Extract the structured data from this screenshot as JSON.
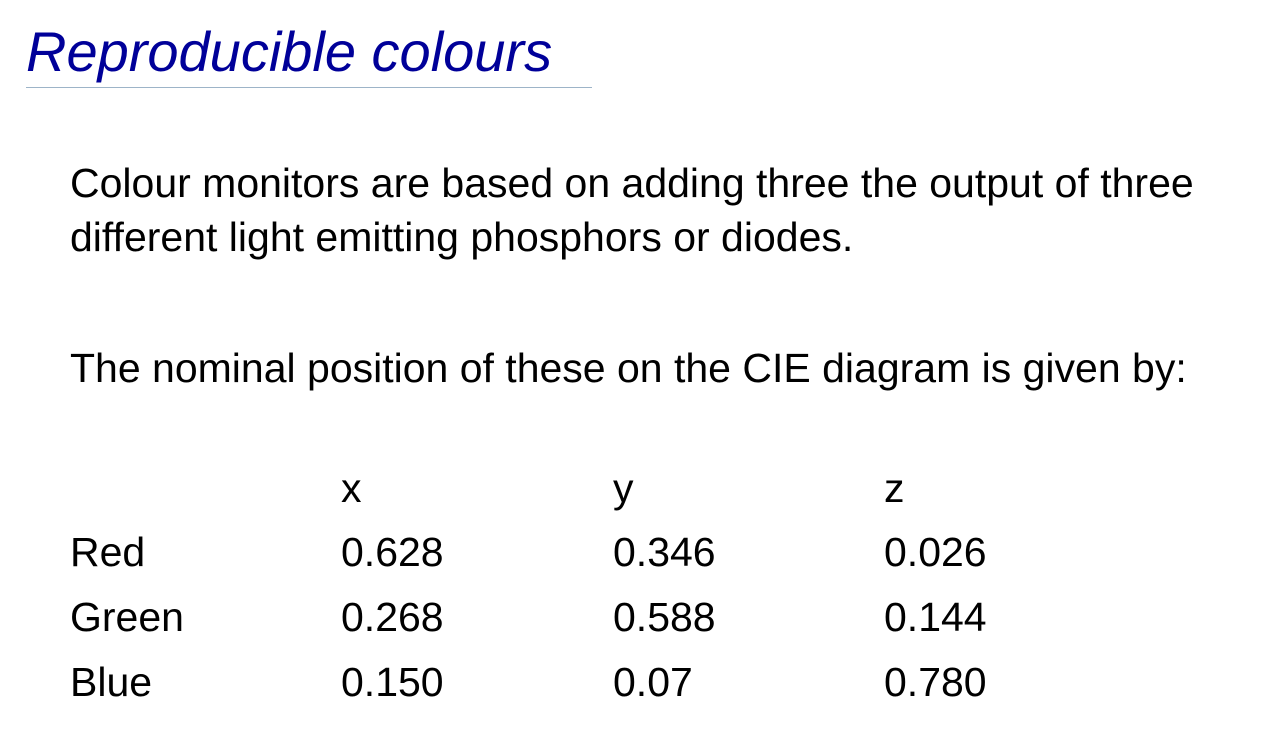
{
  "slide": {
    "title": "Reproducible colours",
    "paragraph_1": "Colour monitors are based on adding three the output of three different light emitting phosphors or diodes.",
    "paragraph_2": "The nominal position of these on the CIE diagram is given by:",
    "accent_color": "#000099"
  },
  "table": {
    "headers": [
      "",
      "x",
      "y",
      "z"
    ],
    "rows": [
      {
        "name": "Red",
        "x": "0.628",
        "y": "0.346",
        "z": "0.026"
      },
      {
        "name": "Green",
        "x": "0.268",
        "y": "0.588",
        "z": "0.144"
      },
      {
        "name": "Blue",
        "x": "0.150",
        "y": "0.07",
        "z": "0.780"
      }
    ]
  }
}
